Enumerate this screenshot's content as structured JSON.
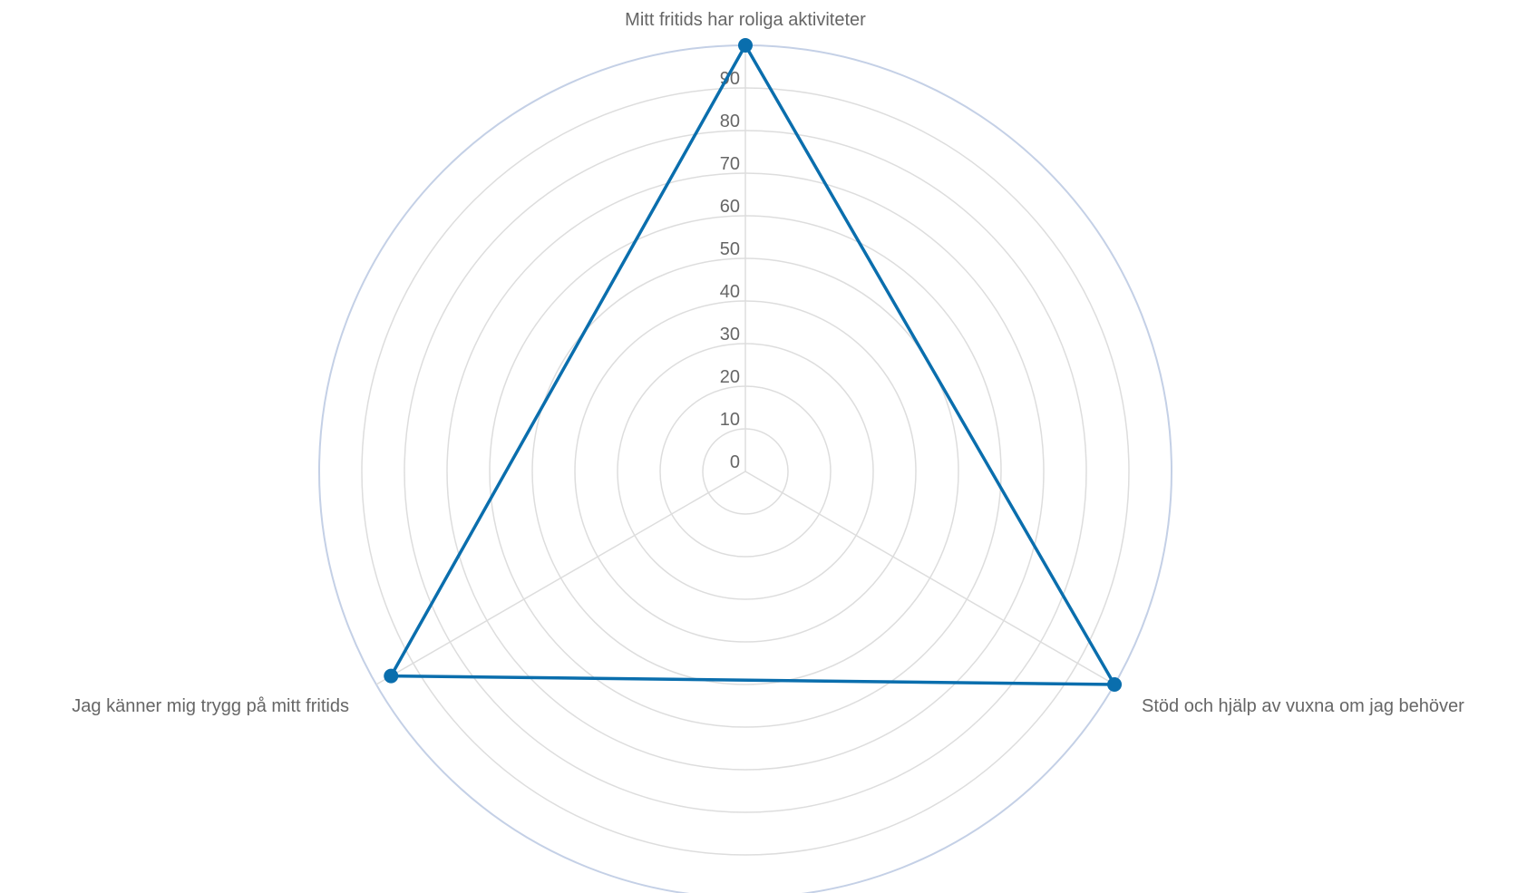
{
  "chart_data": {
    "type": "radar",
    "categories": [
      "Mitt fritids har roliga aktiviteter",
      "Stöd och hjälp av vuxna om jag behöver",
      "Jag känner mig trygg på mitt fritids"
    ],
    "series": [
      {
        "values": [
          100,
          100,
          96
        ],
        "color": "#0a6ead"
      }
    ],
    "ticks": [
      0,
      10,
      20,
      30,
      40,
      50,
      60,
      70,
      80,
      90
    ],
    "rlim": [
      0,
      100
    ],
    "grid": true,
    "colors": {
      "grid": "#dddddd",
      "outer_ring": "#c4d0e6",
      "text": "#666666"
    }
  }
}
